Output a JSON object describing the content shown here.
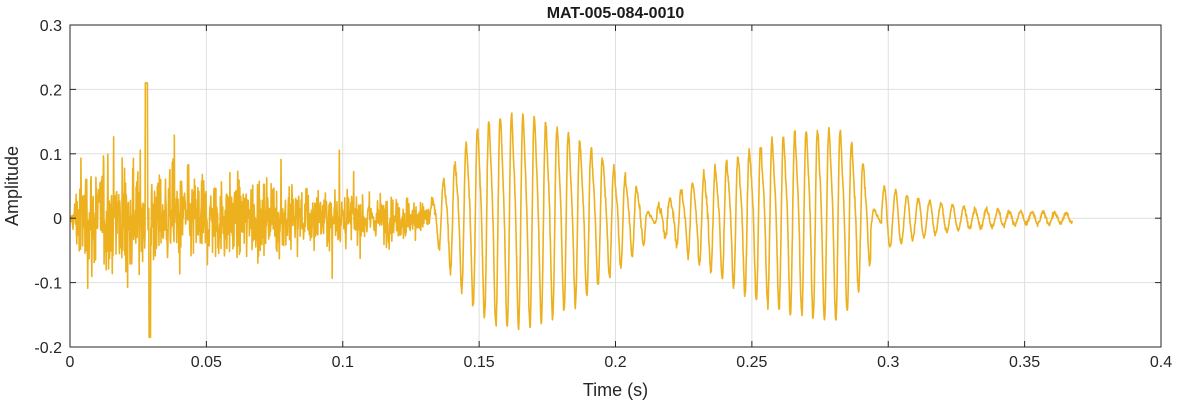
{
  "chart_data": {
    "type": "line",
    "title": "MAT-005-084-0010",
    "xlabel": "Time (s)",
    "ylabel": "Amplitude",
    "xlim": [
      0,
      0.4
    ],
    "ylim": [
      -0.2,
      0.3
    ],
    "xticks": [
      0,
      0.05,
      0.1,
      0.15,
      0.2,
      0.25,
      0.3,
      0.35,
      0.4
    ],
    "xtick_labels": [
      "0",
      "0.05",
      "0.1",
      "0.15",
      "0.2",
      "0.25",
      "0.3",
      "0.35",
      "0.4"
    ],
    "yticks": [
      -0.2,
      -0.1,
      0,
      0.1,
      0.2,
      0.3
    ],
    "ytick_labels": [
      "-0.2",
      "-0.1",
      "0",
      "0.1",
      "0.2",
      "0.3"
    ],
    "grid": true,
    "color": "#EDB120",
    "series": [
      {
        "name": "",
        "signal_end_s": 0.3675,
        "segments": [
          {
            "kind": "noise",
            "t_start": 0.0,
            "t_end": 0.132,
            "peak_max": 0.21,
            "peak_min": -0.185,
            "peak_time": 0.028,
            "typical_amplitude": 0.06
          },
          {
            "kind": "voiced",
            "t_start": 0.132,
            "t_end": 0.215,
            "peak_max": 0.197,
            "peak_min": -0.172,
            "peak_time": 0.16
          },
          {
            "kind": "voiced",
            "t_start": 0.215,
            "t_end": 0.2975,
            "peak_max": 0.17,
            "peak_min": -0.16,
            "peak_time": 0.28
          },
          {
            "kind": "decay",
            "t_start": 0.2975,
            "t_end": 0.3675,
            "peak_max": 0.045,
            "peak_min": -0.03,
            "peak_time": 0.3
          }
        ]
      }
    ]
  }
}
